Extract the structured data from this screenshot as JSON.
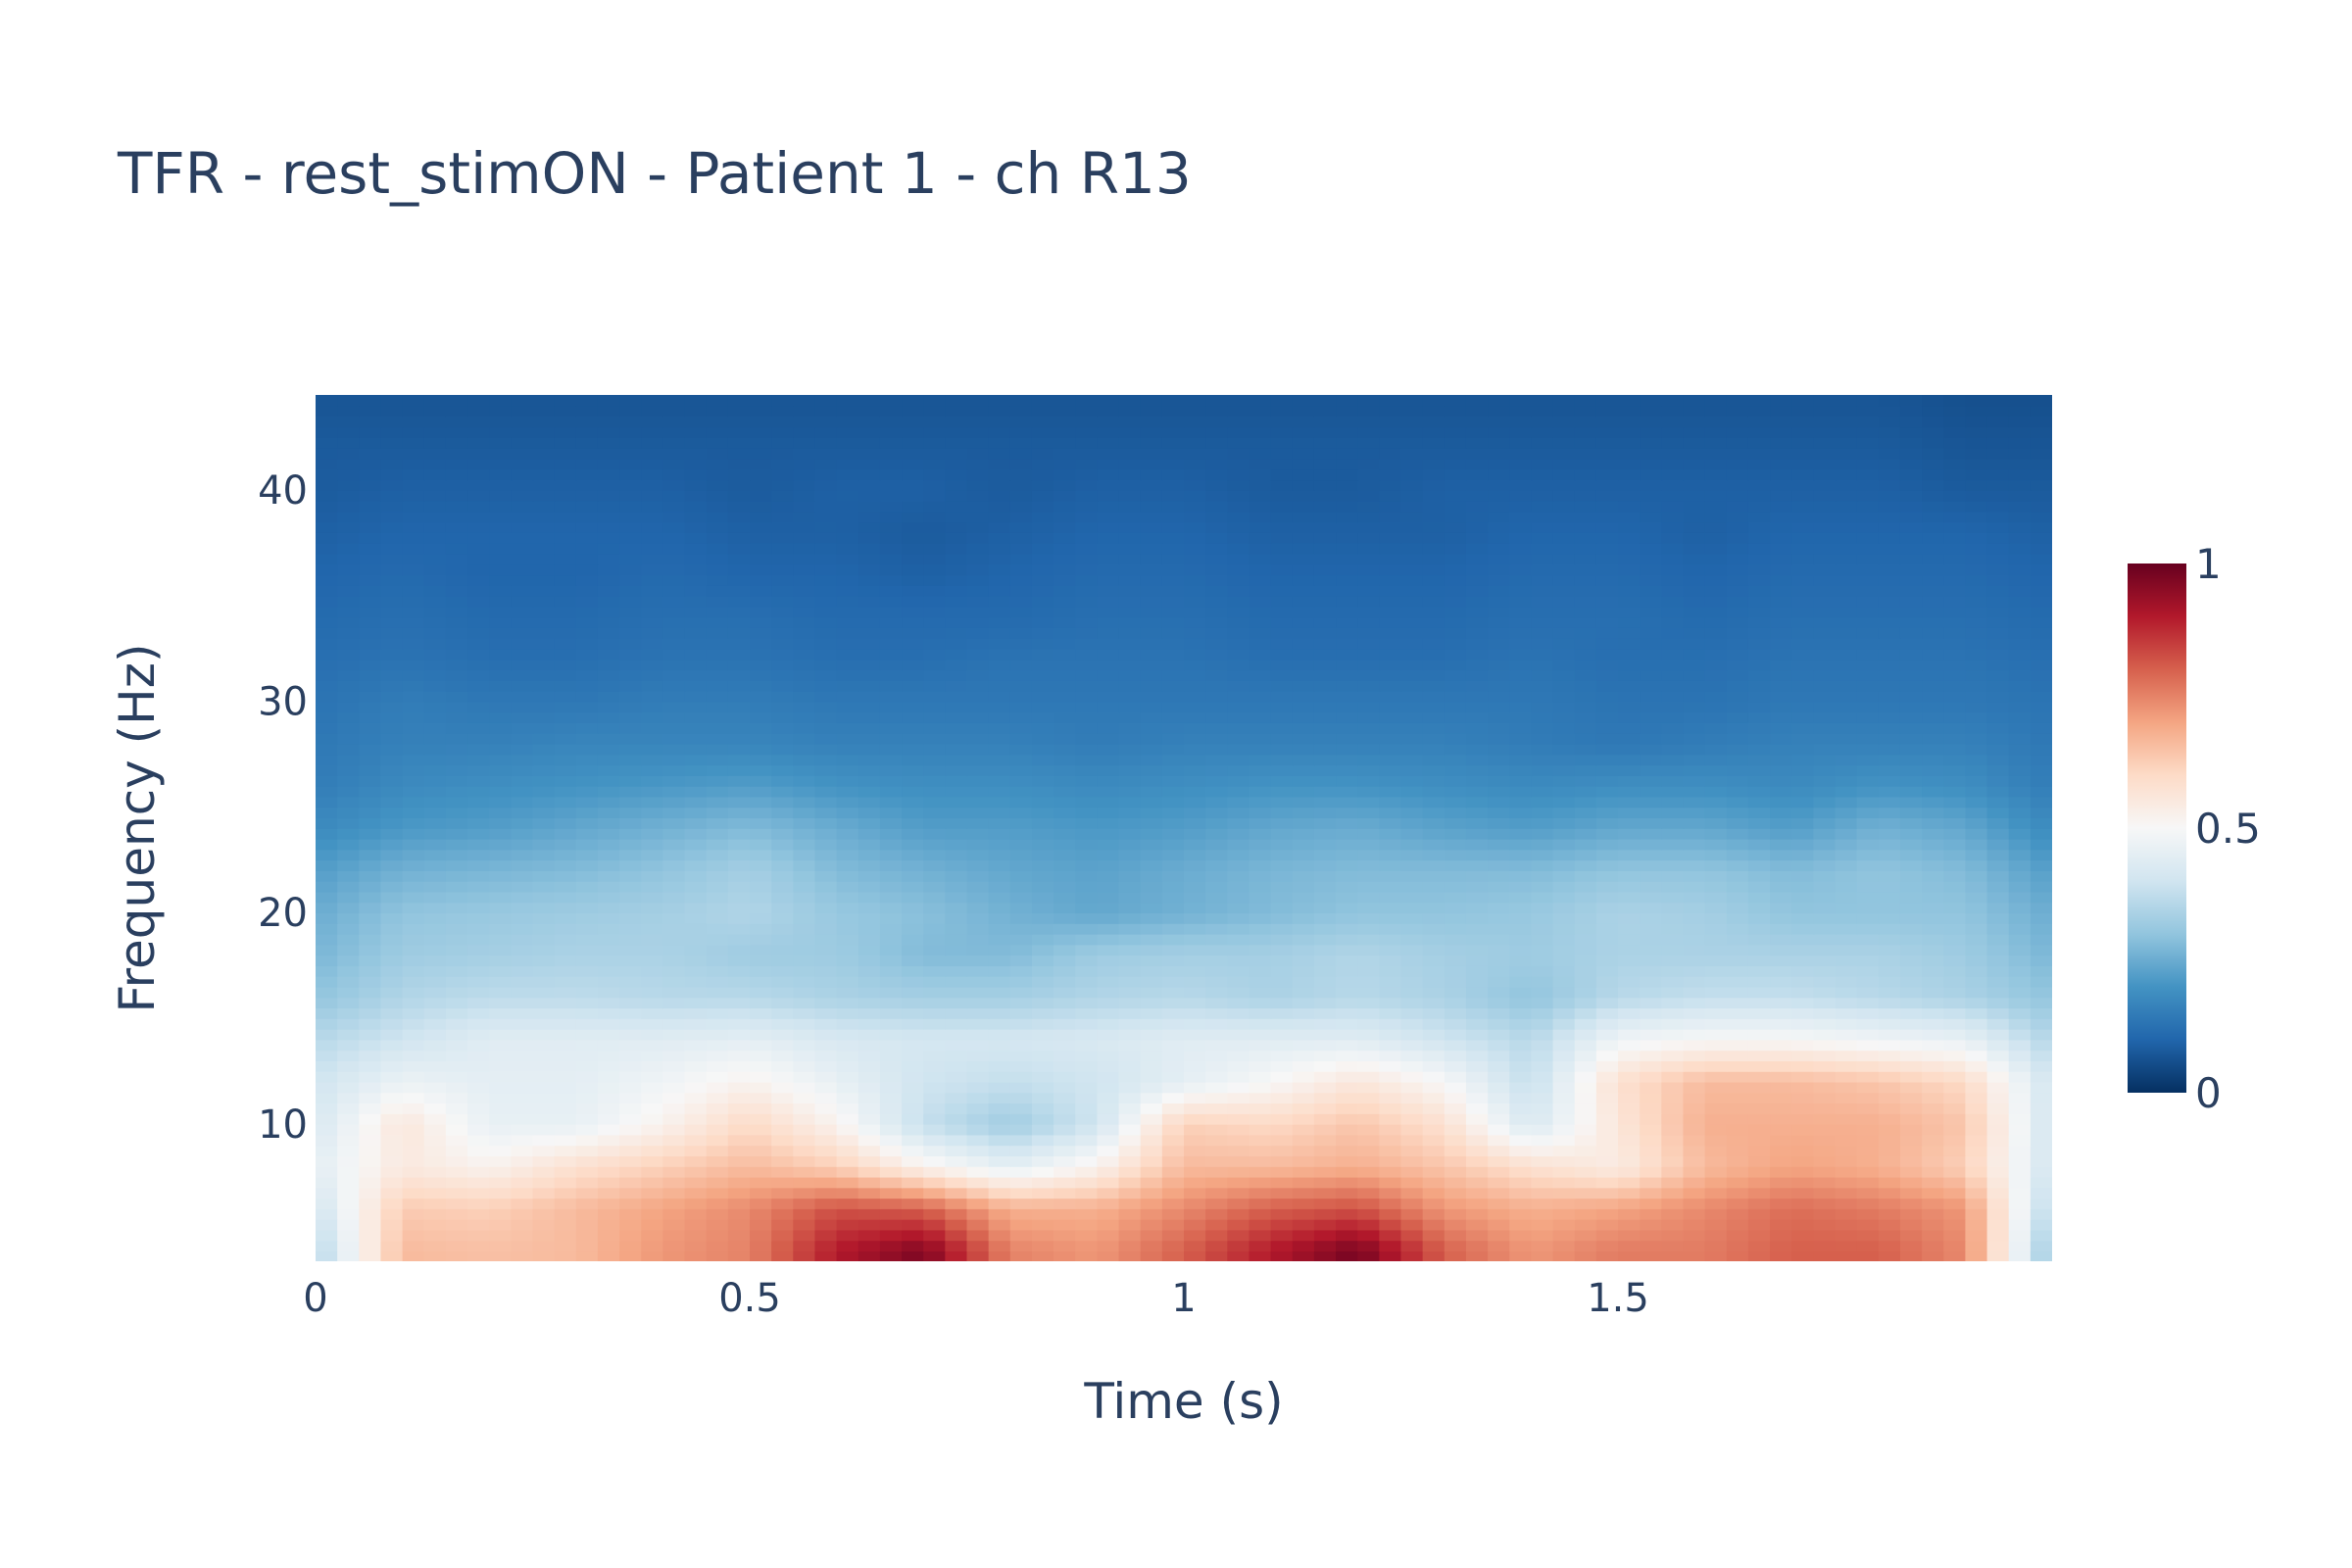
{
  "chart_data": {
    "type": "heatmap",
    "title": "TFR - rest_stimON - Patient 1 - ch R13",
    "xlabel": "Time (s)",
    "ylabel": "Frequency (Hz)",
    "xlim": [
      0,
      2.0
    ],
    "ylim": [
      3.5,
      44.5
    ],
    "x_ticks": [
      {
        "value": 0,
        "label": "0"
      },
      {
        "value": 0.5,
        "label": "0.5"
      },
      {
        "value": 1,
        "label": "1"
      },
      {
        "value": 1.5,
        "label": "1.5"
      }
    ],
    "y_ticks": [
      {
        "value": 10,
        "label": "10"
      },
      {
        "value": 20,
        "label": "20"
      },
      {
        "value": 30,
        "label": "30"
      },
      {
        "value": 40,
        "label": "40"
      }
    ],
    "colorscale": "RdBu",
    "colorscale_stops": [
      "#053061",
      "#2166ac",
      "#4393c3",
      "#92c5de",
      "#d1e5f0",
      "#f7f7f7",
      "#fddbc7",
      "#f4a582",
      "#d6604d",
      "#b2182b",
      "#67001f"
    ],
    "zmin": 0,
    "zmax": 1,
    "colorbar_ticks": [
      {
        "value": 0,
        "label": "0"
      },
      {
        "value": 0.5,
        "label": "0.5"
      },
      {
        "value": 1,
        "label": "1"
      }
    ],
    "x_times": [
      0.0,
      0.1,
      0.2,
      0.3,
      0.4,
      0.5,
      0.6,
      0.7,
      0.8,
      0.9,
      1.0,
      1.1,
      1.2,
      1.3,
      1.4,
      1.5,
      1.6,
      1.7,
      1.8,
      1.9,
      2.0
    ],
    "y_freqs": [
      4,
      6,
      8,
      10,
      12,
      14,
      16,
      18,
      20,
      22,
      24,
      26,
      28,
      30,
      32,
      34,
      36,
      38,
      40,
      42,
      44
    ],
    "z": [
      [
        0.35,
        0.66,
        0.65,
        0.66,
        0.72,
        0.75,
        0.9,
        0.97,
        0.75,
        0.72,
        0.8,
        0.9,
        0.98,
        0.8,
        0.72,
        0.76,
        0.76,
        0.8,
        0.8,
        0.74,
        0.3
      ],
      [
        0.4,
        0.63,
        0.62,
        0.66,
        0.7,
        0.74,
        0.82,
        0.8,
        0.68,
        0.68,
        0.74,
        0.8,
        0.82,
        0.72,
        0.68,
        0.7,
        0.74,
        0.78,
        0.76,
        0.72,
        0.35
      ],
      [
        0.45,
        0.55,
        0.52,
        0.58,
        0.62,
        0.66,
        0.62,
        0.52,
        0.45,
        0.52,
        0.66,
        0.66,
        0.68,
        0.64,
        0.58,
        0.54,
        0.66,
        0.7,
        0.68,
        0.62,
        0.4
      ],
      [
        0.42,
        0.56,
        0.46,
        0.46,
        0.52,
        0.6,
        0.52,
        0.38,
        0.32,
        0.4,
        0.62,
        0.6,
        0.64,
        0.58,
        0.42,
        0.56,
        0.68,
        0.68,
        0.68,
        0.64,
        0.4
      ],
      [
        0.4,
        0.47,
        0.45,
        0.45,
        0.48,
        0.52,
        0.46,
        0.4,
        0.38,
        0.4,
        0.45,
        0.5,
        0.56,
        0.5,
        0.38,
        0.58,
        0.66,
        0.66,
        0.64,
        0.6,
        0.4
      ],
      [
        0.36,
        0.4,
        0.44,
        0.44,
        0.44,
        0.45,
        0.42,
        0.41,
        0.41,
        0.42,
        0.44,
        0.44,
        0.44,
        0.4,
        0.36,
        0.48,
        0.5,
        0.5,
        0.48,
        0.46,
        0.35
      ],
      [
        0.3,
        0.35,
        0.37,
        0.37,
        0.36,
        0.36,
        0.34,
        0.33,
        0.33,
        0.35,
        0.36,
        0.34,
        0.36,
        0.34,
        0.3,
        0.36,
        0.38,
        0.38,
        0.36,
        0.34,
        0.3
      ],
      [
        0.27,
        0.32,
        0.33,
        0.34,
        0.34,
        0.32,
        0.32,
        0.28,
        0.28,
        0.32,
        0.33,
        0.33,
        0.35,
        0.33,
        0.32,
        0.34,
        0.34,
        0.34,
        0.34,
        0.32,
        0.27
      ],
      [
        0.25,
        0.3,
        0.31,
        0.32,
        0.33,
        0.35,
        0.31,
        0.29,
        0.26,
        0.24,
        0.26,
        0.28,
        0.3,
        0.3,
        0.31,
        0.34,
        0.33,
        0.3,
        0.3,
        0.3,
        0.25
      ],
      [
        0.22,
        0.26,
        0.27,
        0.28,
        0.3,
        0.33,
        0.28,
        0.26,
        0.24,
        0.23,
        0.25,
        0.27,
        0.28,
        0.28,
        0.28,
        0.3,
        0.3,
        0.28,
        0.3,
        0.28,
        0.22
      ],
      [
        0.18,
        0.21,
        0.22,
        0.24,
        0.26,
        0.28,
        0.25,
        0.22,
        0.22,
        0.21,
        0.22,
        0.24,
        0.25,
        0.23,
        0.22,
        0.24,
        0.24,
        0.22,
        0.26,
        0.24,
        0.18
      ],
      [
        0.15,
        0.18,
        0.19,
        0.2,
        0.21,
        0.22,
        0.2,
        0.19,
        0.19,
        0.18,
        0.19,
        0.2,
        0.2,
        0.19,
        0.18,
        0.19,
        0.19,
        0.18,
        0.2,
        0.19,
        0.15
      ],
      [
        0.14,
        0.16,
        0.16,
        0.17,
        0.17,
        0.17,
        0.16,
        0.16,
        0.16,
        0.15,
        0.16,
        0.16,
        0.16,
        0.16,
        0.15,
        0.14,
        0.15,
        0.16,
        0.16,
        0.16,
        0.14
      ],
      [
        0.13,
        0.15,
        0.14,
        0.14,
        0.15,
        0.15,
        0.14,
        0.14,
        0.14,
        0.14,
        0.14,
        0.14,
        0.14,
        0.14,
        0.14,
        0.13,
        0.13,
        0.14,
        0.14,
        0.14,
        0.13
      ],
      [
        0.12,
        0.13,
        0.12,
        0.12,
        0.13,
        0.13,
        0.12,
        0.12,
        0.13,
        0.13,
        0.13,
        0.12,
        0.12,
        0.12,
        0.13,
        0.12,
        0.12,
        0.13,
        0.13,
        0.13,
        0.12
      ],
      [
        0.11,
        0.12,
        0.11,
        0.11,
        0.12,
        0.12,
        0.11,
        0.11,
        0.11,
        0.12,
        0.12,
        0.11,
        0.11,
        0.11,
        0.12,
        0.12,
        0.11,
        0.12,
        0.12,
        0.12,
        0.11
      ],
      [
        0.1,
        0.11,
        0.1,
        0.1,
        0.11,
        0.1,
        0.1,
        0.09,
        0.1,
        0.11,
        0.11,
        0.1,
        0.1,
        0.1,
        0.11,
        0.11,
        0.1,
        0.11,
        0.11,
        0.11,
        0.1
      ],
      [
        0.09,
        0.1,
        0.1,
        0.1,
        0.1,
        0.09,
        0.09,
        0.08,
        0.09,
        0.1,
        0.1,
        0.09,
        0.09,
        0.09,
        0.1,
        0.1,
        0.09,
        0.1,
        0.1,
        0.1,
        0.09
      ],
      [
        0.08,
        0.09,
        0.09,
        0.09,
        0.09,
        0.08,
        0.09,
        0.09,
        0.08,
        0.09,
        0.09,
        0.08,
        0.08,
        0.09,
        0.09,
        0.09,
        0.09,
        0.09,
        0.09,
        0.08,
        0.08
      ],
      [
        0.08,
        0.08,
        0.08,
        0.08,
        0.08,
        0.08,
        0.08,
        0.08,
        0.08,
        0.08,
        0.08,
        0.08,
        0.08,
        0.08,
        0.08,
        0.08,
        0.08,
        0.08,
        0.08,
        0.07,
        0.07
      ],
      [
        0.07,
        0.07,
        0.07,
        0.07,
        0.07,
        0.07,
        0.07,
        0.07,
        0.07,
        0.07,
        0.07,
        0.07,
        0.07,
        0.07,
        0.07,
        0.07,
        0.07,
        0.07,
        0.07,
        0.06,
        0.06
      ]
    ]
  }
}
